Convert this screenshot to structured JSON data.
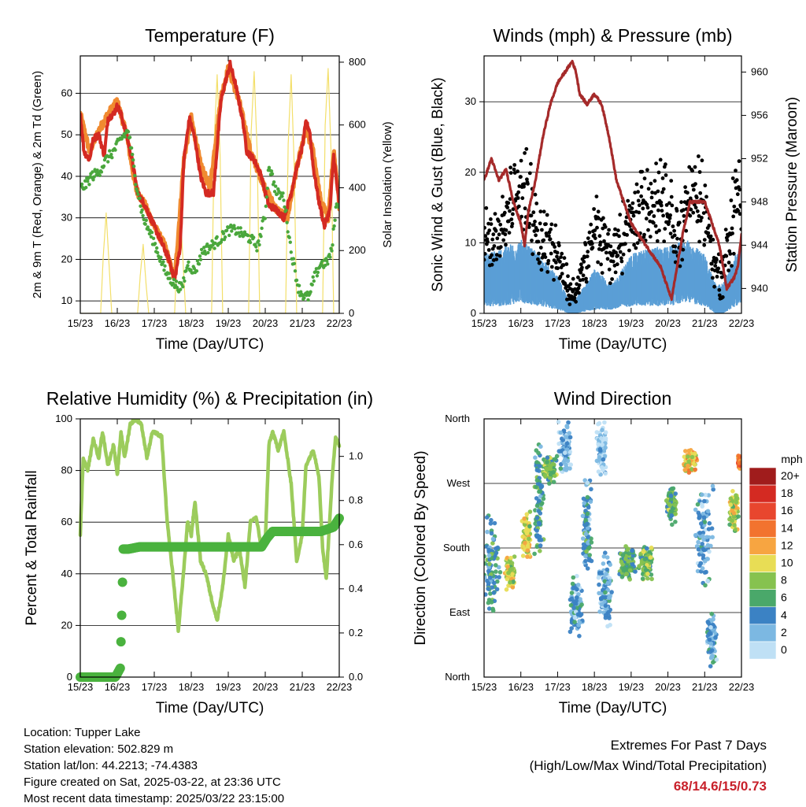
{
  "info": {
    "location": "Location: Tupper Lake",
    "elevation": "Station elevation: 502.829 m",
    "latlon": "Station lat/lon: 44.2213; -74.4383",
    "created": "Figure created on Sat, 2025-03-22, at 23:36 UTC",
    "recent": "Most recent data timestamp: 2025/03/22 23:15:00"
  },
  "extremes": {
    "title": "Extremes For Past 7 Days",
    "subtitle": "(High/Low/Max Wind/Total Precipitation)",
    "values": "68/14.6/15/0.73"
  },
  "colors": {
    "temp2m": "#d42a22",
    "temp9m": "#f08a30",
    "dewpoint": "#4aa73c",
    "solar": "#f3df6a",
    "wind": "#5b9fd6",
    "gust": "#000000",
    "pressure": "#a52a2a",
    "rh": "#9ccc5c",
    "precip": "#4ab23e"
  },
  "chart_data": [
    {
      "type": "line",
      "title": "Temperature (F)",
      "xlabel": "Time (Day/UTC)",
      "ylabel": "2m & 9m T (Red, Orange) & 2m Td (Green)",
      "ylabel_right": "Solar Insolation (Yellow)",
      "x_ticks": [
        "15/23",
        "16/23",
        "17/23",
        "18/23",
        "19/23",
        "20/23",
        "21/23",
        "22/23"
      ],
      "ylim": [
        7,
        69
      ],
      "y_ticks": [
        10,
        20,
        30,
        40,
        50,
        60
      ],
      "ylim_right": [
        0,
        820
      ],
      "y_ticks_right": [
        0,
        200,
        400,
        600,
        800
      ],
      "grid": "horizontal",
      "series": [
        {
          "axis": "left",
          "role": "t2m",
          "x": [
            0,
            0.1,
            0.25,
            0.35,
            0.5,
            0.65,
            0.75,
            0.9,
            1.0,
            1.1,
            1.25,
            1.4,
            1.55,
            1.75,
            2.0,
            2.2,
            2.4,
            2.55,
            2.7,
            2.8,
            2.95,
            3.1,
            3.25,
            3.4,
            3.6,
            3.8,
            3.9,
            4.05,
            4.2,
            4.4,
            4.5,
            4.7,
            4.9,
            5.0,
            5.1,
            5.3,
            5.5,
            5.7,
            5.85,
            6.0,
            6.1,
            6.2,
            6.3,
            6.45,
            6.55,
            6.6,
            6.75,
            6.85,
            6.95,
            7.0
          ],
          "y": [
            55,
            46,
            44,
            49,
            50,
            45,
            54,
            55,
            57,
            55,
            50,
            44,
            36,
            33,
            28,
            24,
            20,
            15,
            23,
            44,
            54,
            49,
            40,
            36,
            36,
            58,
            62,
            67,
            62,
            53,
            46,
            44,
            40,
            36,
            33,
            32,
            30,
            36,
            42,
            47,
            53,
            51,
            42,
            34,
            30,
            28,
            32,
            45,
            37,
            33
          ]
        },
        {
          "axis": "left",
          "role": "t9m",
          "x": [
            0,
            0.25,
            0.5,
            0.75,
            1.0,
            1.25,
            1.5,
            1.75,
            2.0,
            2.3,
            2.55,
            2.8,
            3.0,
            3.25,
            3.5,
            3.8,
            4.0,
            4.3,
            4.6,
            5.0,
            5.3,
            5.6,
            5.85,
            6.1,
            6.3,
            6.5,
            6.7,
            6.85,
            7.0
          ],
          "y": [
            55,
            46,
            51,
            55,
            58,
            50,
            37,
            33,
            28,
            23,
            15,
            44,
            54,
            43,
            37,
            59,
            66,
            58,
            46,
            37,
            32,
            30,
            42,
            51,
            46,
            34,
            30,
            46,
            33
          ]
        },
        {
          "axis": "left",
          "role": "td",
          "x": [
            0,
            0.15,
            0.3,
            0.5,
            0.7,
            0.9,
            1.1,
            1.3,
            1.5,
            1.7,
            2.0,
            2.3,
            2.55,
            2.75,
            2.9,
            3.1,
            3.3,
            3.5,
            3.8,
            4.0,
            4.2,
            4.4,
            4.6,
            4.8,
            5.0,
            5.1,
            5.3,
            5.5,
            5.7,
            5.9,
            6.05,
            6.2,
            6.3,
            6.5,
            6.65,
            6.8,
            6.9,
            7.0
          ],
          "y": [
            37,
            38,
            40,
            41,
            44,
            46,
            49,
            51,
            39,
            30,
            24,
            17,
            14,
            13,
            19,
            17,
            22,
            23,
            25,
            27,
            27,
            26,
            25,
            23,
            31,
            43,
            36,
            35,
            22,
            13,
            11,
            11,
            15,
            19,
            19,
            22,
            32,
            34
          ]
        },
        {
          "axis": "right",
          "role": "solar",
          "x": [
            0,
            0.55,
            0.62,
            0.7,
            0.78,
            0.85,
            1.55,
            1.62,
            1.7,
            1.78,
            1.85,
            2.55,
            2.62,
            2.7,
            2.78,
            2.85,
            3.55,
            3.62,
            3.7,
            3.78,
            3.85,
            4.55,
            4.62,
            4.7,
            4.78,
            4.85,
            5.55,
            5.62,
            5.7,
            5.78,
            5.85,
            6.55,
            6.62,
            6.7,
            6.78,
            6.85,
            7.0
          ],
          "y": [
            0,
            0,
            180,
            320,
            150,
            0,
            0,
            120,
            220,
            90,
            0,
            0,
            200,
            330,
            160,
            0,
            0,
            550,
            760,
            500,
            0,
            0,
            580,
            770,
            520,
            0,
            0,
            540,
            760,
            480,
            0,
            0,
            600,
            780,
            510,
            0,
            0
          ]
        }
      ]
    },
    {
      "type": "scatter",
      "title": "Winds (mph) & Pressure (mb)",
      "xlabel": "Time (Day/UTC)",
      "ylabel": "Sonic Wind & Gust (Blue, Black)",
      "ylabel_right": "Station Pressure (Maroon)",
      "x_ticks": [
        "15/23",
        "16/23",
        "17/23",
        "18/23",
        "19/23",
        "20/23",
        "21/23",
        "22/23"
      ],
      "ylim": [
        0,
        36.5
      ],
      "y_ticks": [
        0,
        10,
        20,
        30
      ],
      "ylim_right": [
        937.7,
        961.5
      ],
      "y_ticks_right": [
        940,
        944,
        948,
        952,
        956,
        960
      ],
      "grid": "horizontal",
      "series": [
        {
          "axis": "left",
          "role": "wind_upper",
          "x": [
            0,
            0.5,
            1.0,
            1.5,
            2.0,
            2.3,
            2.5,
            3.0,
            3.5,
            4.0,
            4.5,
            5.0,
            5.5,
            6.0,
            6.3,
            6.5,
            7.0
          ],
          "y": [
            8,
            9,
            10,
            8,
            5,
            2,
            2,
            6,
            4,
            8,
            9,
            9,
            10,
            8,
            4,
            4,
            10
          ]
        },
        {
          "axis": "left",
          "role": "wind_lower",
          "x": [
            0,
            0.5,
            1.0,
            1.5,
            2.0,
            2.3,
            2.5,
            3.0,
            3.5,
            4.0,
            4.5,
            5.0,
            5.5,
            6.0,
            6.3,
            6.5,
            7.0
          ],
          "y": [
            2,
            2,
            3,
            2,
            1,
            0,
            0,
            1,
            1,
            2,
            2,
            2,
            3,
            2,
            0,
            0,
            3
          ]
        },
        {
          "axis": "left",
          "role": "gust_center",
          "x": [
            0,
            0.5,
            1.0,
            1.25,
            1.5,
            2.0,
            2.3,
            2.5,
            2.8,
            3.0,
            3.5,
            4.0,
            4.5,
            5.0,
            5.3,
            5.5,
            5.7,
            6.0,
            6.3,
            6.5,
            6.8,
            7.0
          ],
          "y": [
            10,
            12,
            18,
            16,
            11,
            9,
            3,
            3,
            8,
            12,
            8,
            13,
            16,
            14,
            10,
            16,
            17,
            15,
            6,
            5,
            15,
            18
          ]
        },
        {
          "axis": "left",
          "role": "gust_spread",
          "x": [
            0,
            0.5,
            1.0,
            1.25,
            1.5,
            2.0,
            2.3,
            2.5,
            2.8,
            3.0,
            3.5,
            4.0,
            4.5,
            5.0,
            5.3,
            5.5,
            5.7,
            6.0,
            6.3,
            6.5,
            6.8,
            7.0
          ],
          "y": [
            4,
            4,
            6,
            5,
            4,
            4,
            2,
            2,
            3,
            4,
            4,
            5,
            5,
            6,
            5,
            5,
            5,
            5,
            3,
            3,
            6,
            7
          ]
        },
        {
          "axis": "right",
          "role": "pressure",
          "x": [
            0,
            0.2,
            0.4,
            0.6,
            0.8,
            1.0,
            1.1,
            1.2,
            1.4,
            1.6,
            1.8,
            2.0,
            2.2,
            2.4,
            2.5,
            2.6,
            2.8,
            3.0,
            3.2,
            3.4,
            3.6,
            3.8,
            4.0,
            4.2,
            4.4,
            4.6,
            4.8,
            5.0,
            5.1,
            5.2,
            5.4,
            5.6,
            5.8,
            6.0,
            6.2,
            6.4,
            6.6,
            6.8,
            6.9,
            7.0
          ],
          "y": [
            950,
            952,
            950,
            951,
            948,
            946,
            944,
            947,
            950,
            954,
            957,
            959,
            960,
            961,
            960,
            958,
            957,
            958,
            957,
            954,
            950,
            948,
            946,
            945,
            944,
            943,
            942,
            940,
            939,
            941,
            945,
            948,
            948,
            948,
            946,
            944,
            940,
            941,
            942,
            945
          ]
        }
      ]
    },
    {
      "type": "line",
      "title": "Relative Humidity (%) & Precipitation (in)",
      "xlabel": "Time (Day/UTC)",
      "ylabel": "Percent & Total Rainfall",
      "x_ticks": [
        "15/23",
        "16/23",
        "17/23",
        "18/23",
        "19/23",
        "20/23",
        "21/23",
        "22/23"
      ],
      "ylim": [
        0,
        100
      ],
      "y_ticks": [
        0,
        20,
        40,
        60,
        80,
        100
      ],
      "ylim_right": [
        0,
        1.17
      ],
      "y_ticks_right": [
        0.0,
        0.2,
        0.4,
        0.6,
        0.8,
        1.0
      ],
      "grid": "horizontal",
      "series": [
        {
          "axis": "left",
          "role": "rh",
          "x": [
            0,
            0.08,
            0.2,
            0.35,
            0.5,
            0.6,
            0.75,
            0.9,
            1.0,
            1.1,
            1.2,
            1.35,
            1.5,
            1.65,
            1.8,
            1.95,
            2.1,
            2.2,
            2.35,
            2.5,
            2.65,
            2.8,
            2.9,
            3.0,
            3.1,
            3.25,
            3.4,
            3.55,
            3.7,
            3.85,
            4.0,
            4.15,
            4.3,
            4.45,
            4.6,
            4.75,
            4.9,
            5.0,
            5.1,
            5.2,
            5.35,
            5.5,
            5.7,
            5.85,
            6.0,
            6.1,
            6.2,
            6.3,
            6.45,
            6.55,
            6.65,
            6.8,
            6.9,
            7.0
          ],
          "y": [
            55,
            85,
            80,
            92,
            85,
            95,
            82,
            90,
            78,
            95,
            85,
            98,
            100,
            98,
            85,
            95,
            94,
            93,
            60,
            40,
            18,
            42,
            60,
            55,
            68,
            45,
            40,
            30,
            22,
            35,
            55,
            45,
            50,
            35,
            60,
            62,
            50,
            52,
            90,
            95,
            88,
            95,
            75,
            45,
            55,
            82,
            85,
            88,
            78,
            50,
            38,
            75,
            93,
            90
          ]
        },
        {
          "axis": "right",
          "role": "precip",
          "x": [
            0,
            0.5,
            0.95,
            1.08,
            1.12,
            1.16,
            1.3,
            1.6,
            2.0,
            3.0,
            4.0,
            4.9,
            5.05,
            5.2,
            5.5,
            6.0,
            6.5,
            6.85,
            7.0
          ],
          "y": [
            0.0,
            0.0,
            0.0,
            0.04,
            0.28,
            0.58,
            0.58,
            0.59,
            0.59,
            0.59,
            0.59,
            0.59,
            0.63,
            0.66,
            0.66,
            0.66,
            0.66,
            0.68,
            0.72
          ]
        }
      ]
    },
    {
      "type": "scatter",
      "title": "Wind Direction",
      "xlabel": "Time (Day/UTC)",
      "ylabel": "Direction (Colored By Speed)",
      "x_ticks": [
        "15/23",
        "16/23",
        "17/23",
        "18/23",
        "19/23",
        "20/23",
        "21/23",
        "22/23"
      ],
      "y_ticks": [
        "North",
        "East",
        "South",
        "West",
        "North"
      ],
      "ylim": [
        0,
        360
      ],
      "grid": "horizontal",
      "colorbar": {
        "title": "mph",
        "labels": [
          "20+",
          "18",
          "16",
          "14",
          "12",
          "10",
          "8",
          "6",
          "4",
          "2",
          "0"
        ],
        "colors": [
          "#a01c1c",
          "#d42a22",
          "#e8462e",
          "#f2732f",
          "#f7a541",
          "#e8dd55",
          "#86c24f",
          "#4aa86a",
          "#3b82c4",
          "#7cb8e2",
          "#bfe0f5"
        ]
      },
      "clusters": [
        {
          "x": 0.2,
          "dir": 160,
          "speed": 5,
          "spread_x": 0.25,
          "spread_dir": 70
        },
        {
          "x": 0.7,
          "dir": 145,
          "speed": 9,
          "spread_x": 0.15,
          "spread_dir": 25
        },
        {
          "x": 1.15,
          "dir": 195,
          "speed": 10,
          "spread_x": 0.12,
          "spread_dir": 40
        },
        {
          "x": 1.5,
          "dir": 250,
          "speed": 5,
          "spread_x": 0.15,
          "spread_dir": 80
        },
        {
          "x": 1.8,
          "dir": 290,
          "speed": 7,
          "spread_x": 0.2,
          "spread_dir": 25
        },
        {
          "x": 2.2,
          "dir": 320,
          "speed": 2,
          "spread_x": 0.2,
          "spread_dir": 40
        },
        {
          "x": 2.5,
          "dir": 100,
          "speed": 3,
          "spread_x": 0.2,
          "spread_dir": 50
        },
        {
          "x": 2.8,
          "dir": 210,
          "speed": 4,
          "spread_x": 0.15,
          "spread_dir": 70
        },
        {
          "x": 3.2,
          "dir": 320,
          "speed": 1,
          "spread_x": 0.15,
          "spread_dir": 40
        },
        {
          "x": 3.3,
          "dir": 120,
          "speed": 3,
          "spread_x": 0.2,
          "spread_dir": 60
        },
        {
          "x": 3.9,
          "dir": 160,
          "speed": 6,
          "spread_x": 0.25,
          "spread_dir": 25
        },
        {
          "x": 4.4,
          "dir": 160,
          "speed": 7,
          "spread_x": 0.2,
          "spread_dir": 25
        },
        {
          "x": 5.1,
          "dir": 240,
          "speed": 7,
          "spread_x": 0.15,
          "spread_dir": 30
        },
        {
          "x": 5.6,
          "dir": 300,
          "speed": 11,
          "spread_x": 0.2,
          "spread_dir": 20
        },
        {
          "x": 6.0,
          "dir": 200,
          "speed": 3,
          "spread_x": 0.3,
          "spread_dir": 80
        },
        {
          "x": 6.2,
          "dir": 50,
          "speed": 3,
          "spread_x": 0.15,
          "spread_dir": 40
        },
        {
          "x": 6.8,
          "dir": 230,
          "speed": 9,
          "spread_x": 0.15,
          "spread_dir": 30
        },
        {
          "x": 6.95,
          "dir": 300,
          "speed": 14,
          "spread_x": 0.05,
          "spread_dir": 10
        }
      ]
    }
  ]
}
